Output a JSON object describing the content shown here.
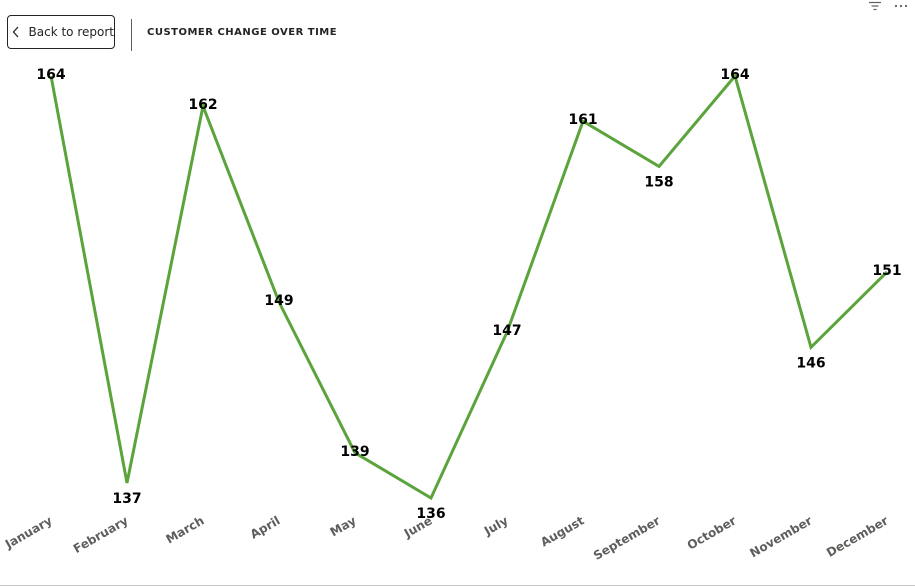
{
  "header": {
    "back_label": "Back to report",
    "title": "CUSTOMER CHANGE OVER TIME"
  },
  "icons": {
    "back": "chevron-left-icon",
    "filter": "filter-icon",
    "more": "more-options-icon"
  },
  "colors": {
    "line": "#5ba33b",
    "text": "#252423",
    "axis_label": "#605e5c"
  },
  "chart_data": {
    "type": "line",
    "title": "CUSTOMER CHANGE OVER TIME",
    "xlabel": "",
    "ylabel": "",
    "categories": [
      "January",
      "February",
      "March",
      "April",
      "May",
      "June",
      "July",
      "August",
      "September",
      "October",
      "November",
      "December"
    ],
    "values": [
      164,
      137,
      162,
      149,
      139,
      136,
      147,
      161,
      158,
      164,
      146,
      151
    ],
    "ylim": [
      136,
      164
    ],
    "grid": false,
    "legend": "none",
    "data_labels": true
  }
}
